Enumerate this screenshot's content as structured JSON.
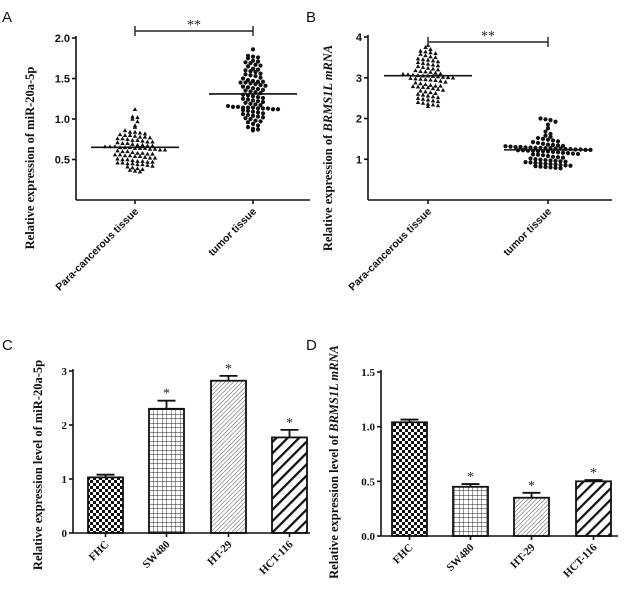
{
  "figure": {
    "panels": [
      "A",
      "B",
      "C",
      "D"
    ]
  },
  "chart_data": [
    {
      "panel": "A",
      "type": "scatter",
      "subtype": "dot-plot",
      "title": "",
      "xlabel": "",
      "ylabel": "Relative expression of miR-20a-5p",
      "ylabel_italic_part": "",
      "ylim": [
        0,
        2.0
      ],
      "yticks": [
        "0.5",
        "1.0",
        "1.5",
        "2.0"
      ],
      "ytick_values": [
        0.5,
        1.0,
        1.5,
        2.0
      ],
      "categories": [
        "Para-cancerous tissue",
        "tumor tissue"
      ],
      "series": [
        {
          "name": "Para-cancerous tissue",
          "marker": "triangle",
          "mean": 0.65,
          "range": [
            0.35,
            1.12
          ],
          "n_approx": 90,
          "values": [
            1.12,
            1.03,
            1.02,
            1.0,
            0.97,
            0.92,
            0.9,
            0.86,
            0.84,
            0.84,
            0.83,
            0.82,
            0.81,
            0.8,
            0.8,
            0.79,
            0.78,
            0.78,
            0.77,
            0.76,
            0.76,
            0.75,
            0.74,
            0.74,
            0.73,
            0.72,
            0.72,
            0.71,
            0.7,
            0.7,
            0.69,
            0.68,
            0.68,
            0.67,
            0.67,
            0.66,
            0.66,
            0.66,
            0.65,
            0.65,
            0.65,
            0.64,
            0.64,
            0.64,
            0.63,
            0.63,
            0.62,
            0.62,
            0.61,
            0.6,
            0.6,
            0.59,
            0.58,
            0.58,
            0.57,
            0.57,
            0.56,
            0.56,
            0.55,
            0.55,
            0.54,
            0.54,
            0.53,
            0.52,
            0.52,
            0.51,
            0.5,
            0.5,
            0.49,
            0.48,
            0.48,
            0.47,
            0.47,
            0.46,
            0.46,
            0.45,
            0.45,
            0.44,
            0.44,
            0.43,
            0.42,
            0.41,
            0.4,
            0.39,
            0.38,
            0.37,
            0.36,
            0.35
          ]
        },
        {
          "name": "tumor tissue",
          "marker": "circle",
          "mean": 1.31,
          "range": [
            0.86,
            1.86
          ],
          "n_approx": 90,
          "values": [
            1.86,
            1.78,
            1.77,
            1.76,
            1.75,
            1.72,
            1.71,
            1.7,
            1.69,
            1.67,
            1.66,
            1.65,
            1.62,
            1.61,
            1.6,
            1.59,
            1.58,
            1.56,
            1.55,
            1.54,
            1.53,
            1.51,
            1.5,
            1.48,
            1.47,
            1.46,
            1.46,
            1.45,
            1.45,
            1.44,
            1.43,
            1.42,
            1.41,
            1.4,
            1.39,
            1.38,
            1.37,
            1.36,
            1.35,
            1.34,
            1.33,
            1.32,
            1.3,
            1.29,
            1.28,
            1.27,
            1.26,
            1.25,
            1.24,
            1.23,
            1.22,
            1.21,
            1.2,
            1.19,
            1.18,
            1.17,
            1.16,
            1.15,
            1.15,
            1.14,
            1.14,
            1.14,
            1.13,
            1.13,
            1.13,
            1.12,
            1.12,
            1.11,
            1.1,
            1.09,
            1.08,
            1.07,
            1.06,
            1.05,
            1.04,
            1.03,
            1.02,
            1.01,
            1.0,
            0.98,
            0.97,
            0.96,
            0.94,
            0.92,
            0.9,
            0.88,
            0.87,
            0.86
          ]
        }
      ],
      "annotations": [
        {
          "text": "**",
          "between": [
            "Para-cancerous tissue",
            "tumor tissue"
          ]
        }
      ]
    },
    {
      "panel": "B",
      "type": "scatter",
      "subtype": "dot-plot",
      "title": "",
      "xlabel": "",
      "ylabel": "Relative expression of ",
      "ylabel_italic_part": "BRMS1L mRNA",
      "ylim": [
        0,
        4
      ],
      "yticks": [
        "1",
        "2",
        "3",
        "4"
      ],
      "ytick_values": [
        1,
        2,
        3,
        4
      ],
      "categories": [
        "Para-cancerous tissue",
        "tumor tissue"
      ],
      "series": [
        {
          "name": "Para-cancerous tissue",
          "marker": "triangle",
          "mean": 3.05,
          "range": [
            2.3,
            3.8
          ],
          "n_approx": 90,
          "values": [
            3.8,
            3.75,
            3.7,
            3.66,
            3.64,
            3.62,
            3.6,
            3.58,
            3.55,
            3.52,
            3.5,
            3.47,
            3.45,
            3.44,
            3.42,
            3.4,
            3.38,
            3.36,
            3.34,
            3.32,
            3.3,
            3.28,
            3.26,
            3.24,
            3.22,
            3.2,
            3.18,
            3.16,
            3.15,
            3.14,
            3.12,
            3.1,
            3.09,
            3.08,
            3.07,
            3.06,
            3.05,
            3.05,
            3.04,
            3.03,
            3.02,
            3.01,
            3.0,
            2.99,
            2.98,
            2.97,
            2.96,
            2.95,
            2.94,
            2.92,
            2.9,
            2.88,
            2.86,
            2.84,
            2.82,
            2.8,
            2.8,
            2.79,
            2.78,
            2.77,
            2.76,
            2.74,
            2.72,
            2.7,
            2.68,
            2.66,
            2.64,
            2.62,
            2.6,
            2.58,
            2.56,
            2.54,
            2.52,
            2.5,
            2.48,
            2.46,
            2.44,
            2.42,
            2.4,
            2.38,
            2.36,
            2.34,
            2.32,
            2.3
          ]
        },
        {
          "name": "tumor tissue",
          "marker": "circle",
          "mean": 1.23,
          "range": [
            0.78,
            2.0
          ],
          "n_approx": 90,
          "values": [
            2.0,
            1.98,
            1.96,
            1.92,
            1.85,
            1.76,
            1.68,
            1.62,
            1.58,
            1.55,
            1.52,
            1.5,
            1.48,
            1.46,
            1.44,
            1.42,
            1.4,
            1.38,
            1.36,
            1.35,
            1.34,
            1.33,
            1.32,
            1.31,
            1.3,
            1.3,
            1.29,
            1.29,
            1.28,
            1.28,
            1.27,
            1.27,
            1.26,
            1.26,
            1.25,
            1.25,
            1.24,
            1.24,
            1.23,
            1.23,
            1.22,
            1.22,
            1.21,
            1.21,
            1.2,
            1.2,
            1.19,
            1.18,
            1.17,
            1.16,
            1.15,
            1.14,
            1.13,
            1.12,
            1.11,
            1.1,
            1.08,
            1.06,
            1.05,
            1.04,
            1.02,
            1.0,
            0.99,
            0.98,
            0.97,
            0.96,
            0.95,
            0.94,
            0.93,
            0.92,
            0.91,
            0.9,
            0.89,
            0.88,
            0.87,
            0.86,
            0.85,
            0.84,
            0.83,
            0.82,
            0.81,
            0.8,
            0.79,
            0.78
          ]
        }
      ],
      "annotations": [
        {
          "text": "**",
          "between": [
            "Para-cancerous tissue",
            "tumor tissue"
          ]
        }
      ]
    },
    {
      "panel": "C",
      "type": "bar",
      "title": "",
      "xlabel": "",
      "ylabel": "Relative expression level of miR-20a-5p",
      "ylabel_italic_part": "",
      "ylim": [
        0,
        3
      ],
      "yticks": [
        "0",
        "1",
        "2",
        "3"
      ],
      "ytick_values": [
        0,
        1,
        2,
        3
      ],
      "categories": [
        "FHC",
        "SW480",
        "HT-29",
        "HCT-116"
      ],
      "values": [
        1.03,
        2.3,
        2.82,
        1.77
      ],
      "errors": [
        0.05,
        0.15,
        0.09,
        0.14
      ],
      "patterns": [
        "checker",
        "grid",
        "fine-diagonal",
        "bold-diagonal"
      ],
      "significance": [
        "",
        "*",
        "*",
        "*"
      ]
    },
    {
      "panel": "D",
      "type": "bar",
      "title": "",
      "xlabel": "",
      "ylabel": "Relative expression level of ",
      "ylabel_italic_part": "BRMS1L mRNA",
      "ylim": [
        0,
        1.5
      ],
      "yticks": [
        "0.0",
        "0.5",
        "1.0",
        "1.5"
      ],
      "ytick_values": [
        0,
        0.5,
        1.0,
        1.5
      ],
      "categories": [
        "FHC",
        "SW480",
        "HT-29",
        "HCT-116"
      ],
      "values": [
        1.04,
        0.45,
        0.35,
        0.5
      ],
      "errors": [
        0.025,
        0.025,
        0.045,
        0.012
      ],
      "patterns": [
        "checker",
        "grid",
        "fine-diagonal",
        "bold-diagonal"
      ],
      "significance": [
        "",
        "*",
        "*",
        "*"
      ]
    }
  ]
}
